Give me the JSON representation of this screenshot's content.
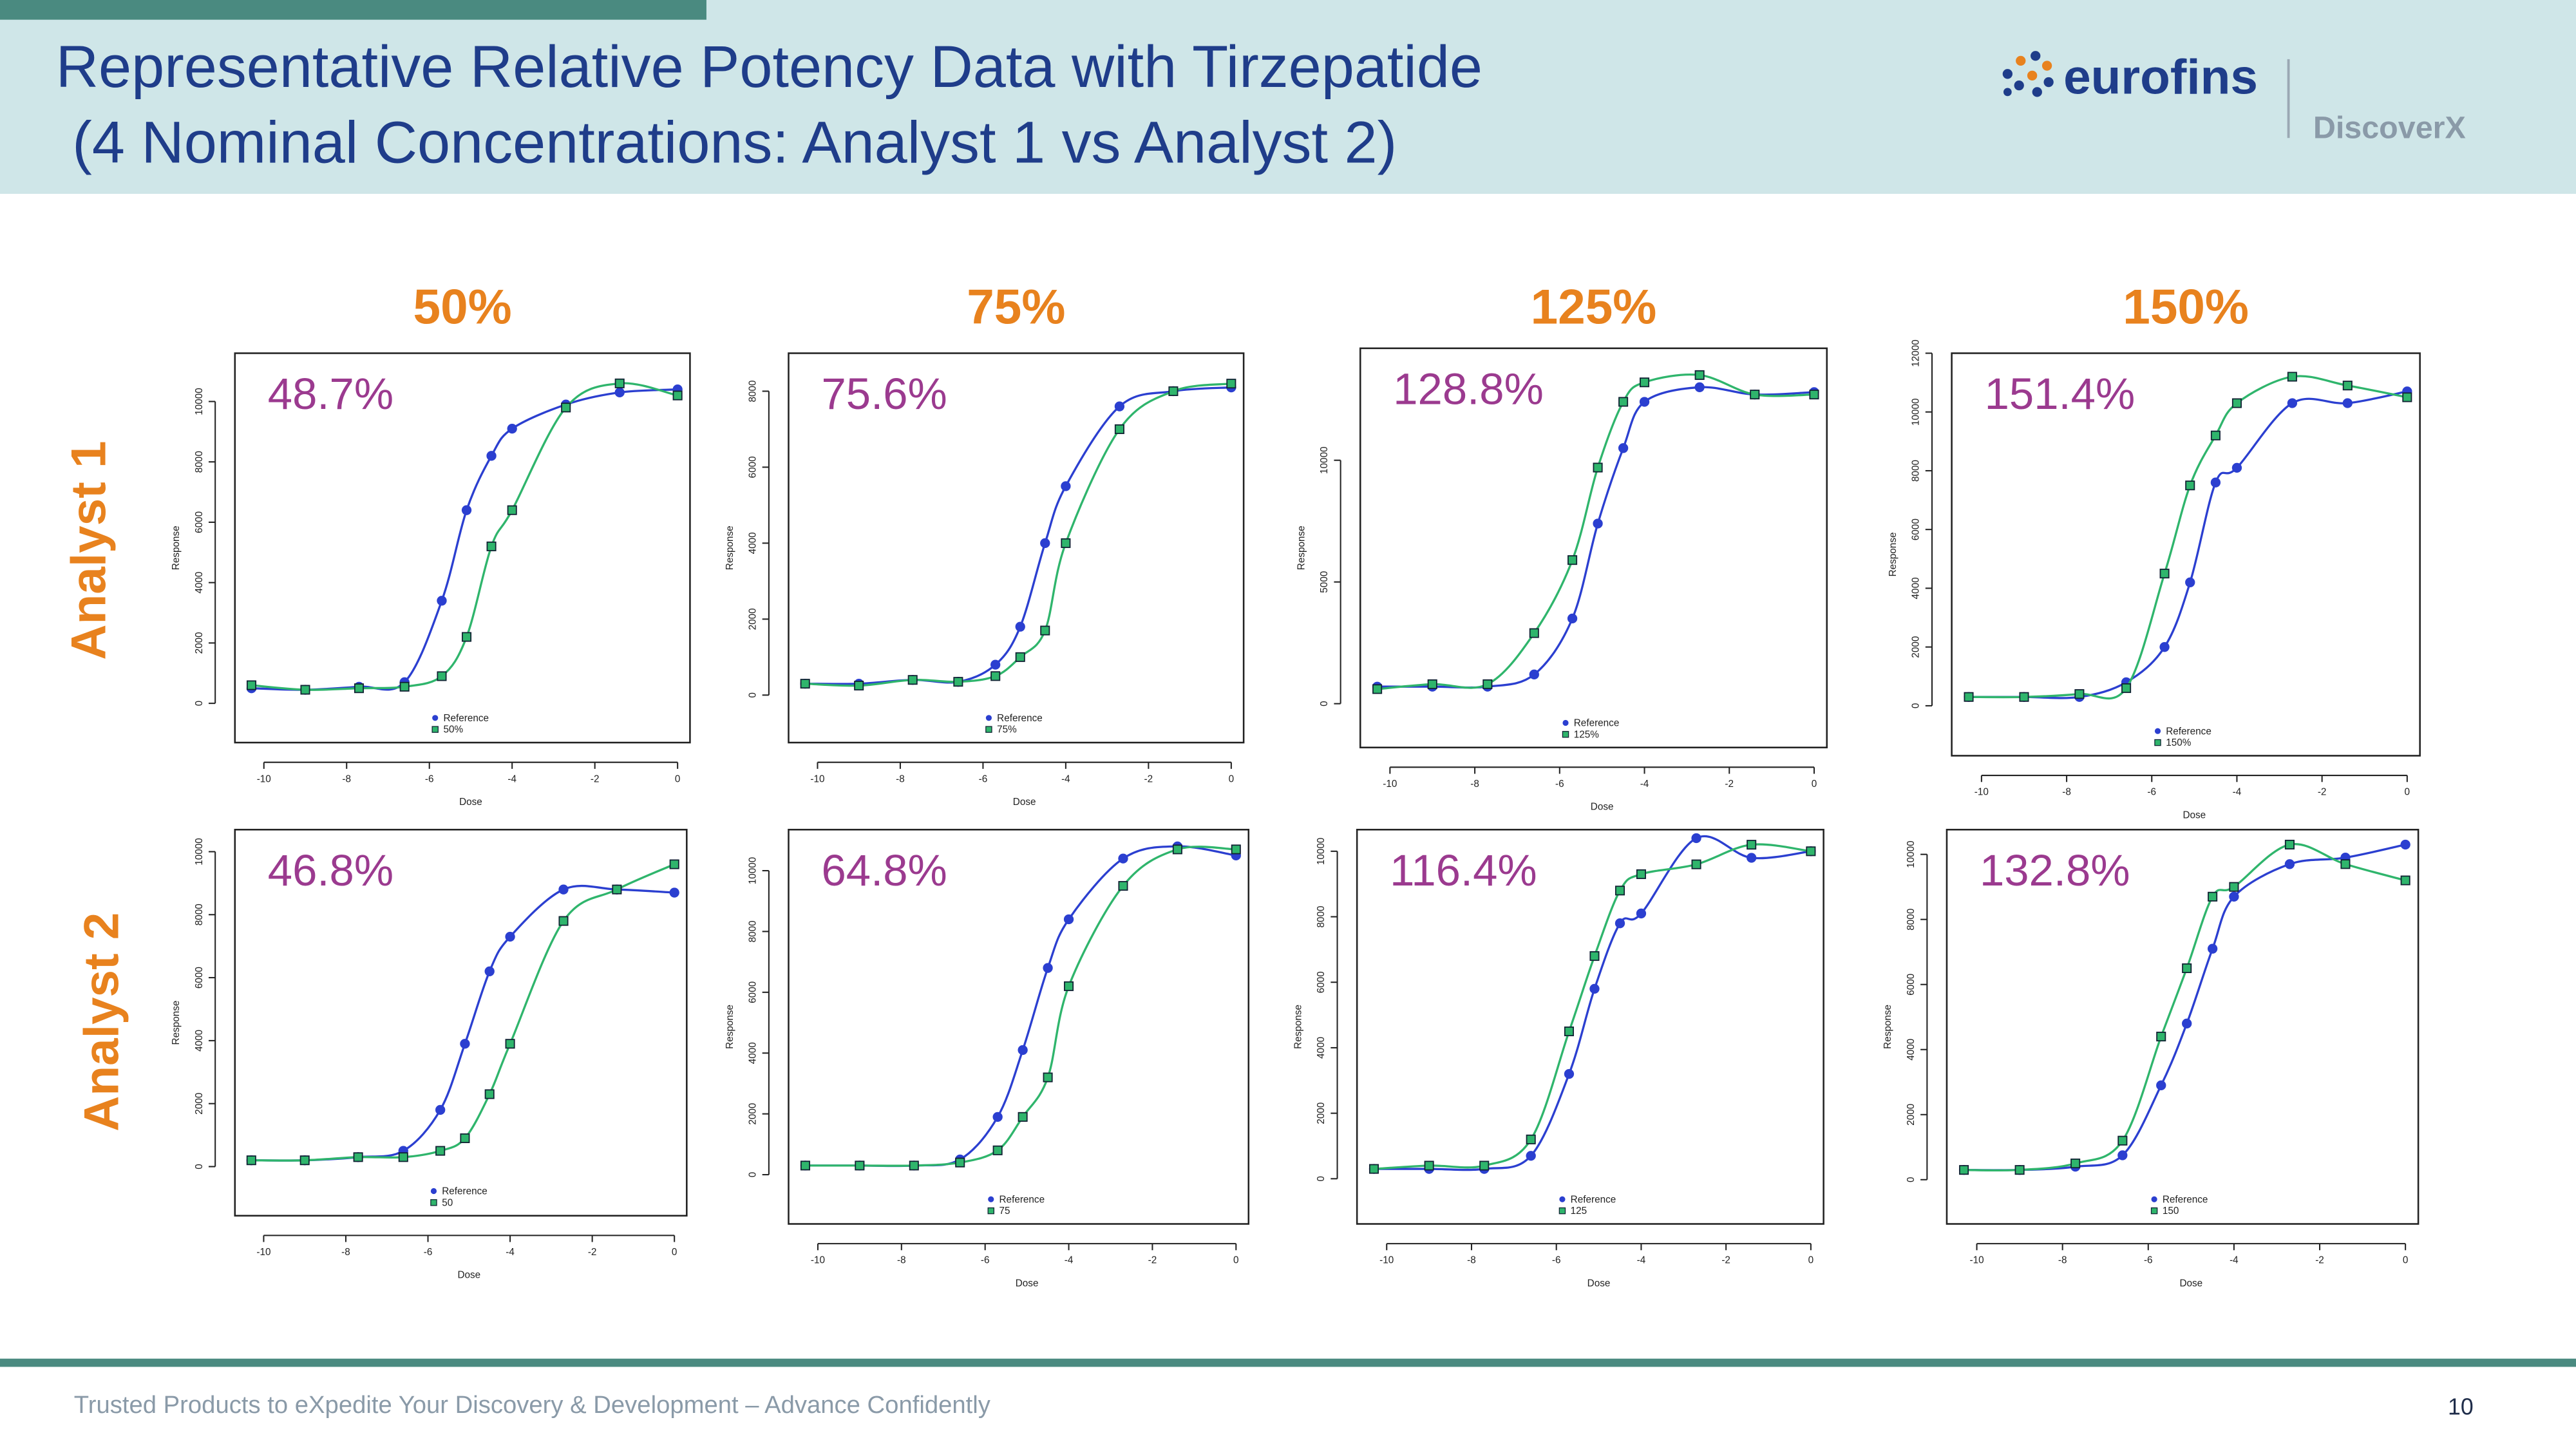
{
  "header": {
    "title_line1": "Representative Relative Potency Data with Tirzepatide",
    "title_line2": " (4 Nominal Concentrations: Analyst 1 vs Analyst 2)",
    "logo": "eurofins",
    "brand": "DiscoverX"
  },
  "row_labels": [
    "Analyst 1",
    "Analyst 2"
  ],
  "footer": {
    "tagline": "Trusted Products to eXpedite Your Discovery & Development – Advance Confidently",
    "page": "10"
  },
  "chart_data": [
    {
      "type": "scatter",
      "title": "50%",
      "annotation": "48.7%",
      "x_label": "Dose",
      "y_label": "Response",
      "x": [
        -10.3,
        -9.0,
        -7.7,
        -6.6,
        -5.7,
        -5.1,
        -4.5,
        -4.0,
        -2.7,
        -1.4,
        0
      ],
      "xlim": [
        -10.7,
        0.3
      ],
      "ylim": [
        -1300,
        11600
      ],
      "xticks": [
        -10,
        -8,
        -6,
        -4,
        -2,
        0
      ],
      "yticks": [
        0,
        2000,
        4000,
        6000,
        8000,
        10000
      ],
      "series": [
        {
          "name": "Reference",
          "color": "#2b3fd0",
          "values": [
            500,
            450,
            550,
            700,
            3400,
            6400,
            8200,
            9100,
            9900,
            10300,
            10400
          ]
        },
        {
          "name": "50%",
          "color": "#2fb56c",
          "values": [
            600,
            450,
            500,
            550,
            900,
            2200,
            5200,
            6400,
            9800,
            10600,
            10200
          ]
        }
      ]
    },
    {
      "type": "scatter",
      "title": "75%",
      "annotation": "75.6%",
      "x_label": "Dose",
      "y_label": "Response",
      "x": [
        -10.3,
        -9.0,
        -7.7,
        -6.6,
        -5.7,
        -5.1,
        -4.5,
        -4.0,
        -2.7,
        -1.4,
        0
      ],
      "xlim": [
        -10.7,
        0.3
      ],
      "ylim": [
        -1250,
        9000
      ],
      "xticks": [
        -10,
        -8,
        -6,
        -4,
        -2,
        0
      ],
      "yticks": [
        0,
        2000,
        4000,
        6000,
        8000
      ],
      "series": [
        {
          "name": "Reference",
          "color": "#2b3fd0",
          "values": [
            300,
            300,
            400,
            350,
            800,
            1800,
            4000,
            5500,
            7600,
            8000,
            8100
          ]
        },
        {
          "name": "75%",
          "color": "#2fb56c",
          "values": [
            300,
            250,
            400,
            350,
            500,
            1000,
            1700,
            4000,
            7000,
            8000,
            8200
          ]
        }
      ]
    },
    {
      "type": "scatter",
      "title": "125%",
      "annotation": "128.8%",
      "x_label": "Dose",
      "y_label": "Response",
      "x": [
        -10.3,
        -9.0,
        -7.7,
        -6.6,
        -5.7,
        -5.1,
        -4.5,
        -4.0,
        -2.7,
        -1.4,
        0
      ],
      "xlim": [
        -10.7,
        0.3
      ],
      "ylim": [
        -1800,
        14600
      ],
      "xticks": [
        -10,
        -8,
        -6,
        -4,
        -2,
        0
      ],
      "yticks": [
        0,
        5000,
        10000
      ],
      "series": [
        {
          "name": "Reference",
          "color": "#2b3fd0",
          "values": [
            700,
            700,
            700,
            1200,
            3500,
            7400,
            10500,
            12400,
            13000,
            12700,
            12800
          ]
        },
        {
          "name": "125%",
          "color": "#2fb56c",
          "values": [
            600,
            800,
            800,
            2900,
            5900,
            9700,
            12400,
            13200,
            13500,
            12700,
            12700
          ]
        }
      ]
    },
    {
      "type": "scatter",
      "title": "150%",
      "annotation": "151.4%",
      "x_label": "Dose",
      "y_label": "Response",
      "x": [
        -10.3,
        -9.0,
        -7.7,
        -6.6,
        -5.7,
        -5.1,
        -4.5,
        -4.0,
        -2.7,
        -1.4,
        0
      ],
      "xlim": [
        -10.7,
        0.3
      ],
      "ylim": [
        -1700,
        12000
      ],
      "xticks": [
        -10,
        -8,
        -6,
        -4,
        -2,
        0
      ],
      "yticks": [
        0,
        2000,
        4000,
        6000,
        8000,
        10000,
        12000
      ],
      "series": [
        {
          "name": "Reference",
          "color": "#2b3fd0",
          "values": [
            300,
            300,
            300,
            800,
            2000,
            4200,
            7600,
            8100,
            10300,
            10300,
            10700
          ]
        },
        {
          "name": "150%",
          "color": "#2fb56c",
          "values": [
            300,
            300,
            400,
            600,
            4500,
            7500,
            9200,
            10300,
            11200,
            10900,
            10500
          ]
        }
      ]
    },
    {
      "type": "scatter",
      "annotation": "46.8%",
      "x_label": "Dose",
      "y_label": "Response",
      "x": [
        -10.3,
        -9.0,
        -7.7,
        -6.6,
        -5.7,
        -5.1,
        -4.5,
        -4.0,
        -2.7,
        -1.4,
        0
      ],
      "xlim": [
        -10.7,
        0.3
      ],
      "ylim": [
        -1560,
        10700
      ],
      "xticks": [
        -10,
        -8,
        -6,
        -4,
        -2,
        0
      ],
      "yticks": [
        0,
        2000,
        4000,
        6000,
        8000,
        10000
      ],
      "series": [
        {
          "name": "Reference",
          "color": "#2b3fd0",
          "values": [
            200,
            200,
            300,
            500,
            1800,
            3900,
            6200,
            7300,
            8800,
            8800,
            8700
          ]
        },
        {
          "name": "50",
          "color": "#2fb56c",
          "values": [
            200,
            200,
            300,
            300,
            500,
            900,
            2300,
            3900,
            7800,
            8800,
            9600
          ]
        }
      ]
    },
    {
      "type": "scatter",
      "annotation": "64.8%",
      "x_label": "Dose",
      "y_label": "Response",
      "x": [
        -10.3,
        -9.0,
        -7.7,
        -6.6,
        -5.7,
        -5.1,
        -4.5,
        -4.0,
        -2.7,
        -1.4,
        0
      ],
      "xlim": [
        -10.7,
        0.3
      ],
      "ylim": [
        -1620,
        11350
      ],
      "xticks": [
        -10,
        -8,
        -6,
        -4,
        -2,
        0
      ],
      "yticks": [
        0,
        2000,
        4000,
        6000,
        8000,
        10000
      ],
      "series": [
        {
          "name": "Reference",
          "color": "#2b3fd0",
          "values": [
            300,
            300,
            300,
            500,
            1900,
            4100,
            6800,
            8400,
            10400,
            10800,
            10500
          ]
        },
        {
          "name": "75",
          "color": "#2fb56c",
          "values": [
            300,
            300,
            300,
            400,
            800,
            1900,
            3200,
            6200,
            9500,
            10700,
            10700
          ]
        }
      ]
    },
    {
      "type": "scatter",
      "annotation": "116.4%",
      "x_label": "Dose",
      "y_label": "Response",
      "x": [
        -10.3,
        -9.0,
        -7.7,
        -6.6,
        -5.7,
        -5.1,
        -4.5,
        -4.0,
        -2.7,
        -1.4,
        0
      ],
      "xlim": [
        -10.7,
        0.3
      ],
      "ylim": [
        -1380,
        10660
      ],
      "xticks": [
        -10,
        -8,
        -6,
        -4,
        -2,
        0
      ],
      "yticks": [
        0,
        2000,
        4000,
        6000,
        8000,
        10000
      ],
      "series": [
        {
          "name": "Reference",
          "color": "#2b3fd0",
          "values": [
            300,
            300,
            300,
            700,
            3200,
            5800,
            7800,
            8100,
            10400,
            9800,
            10000
          ]
        },
        {
          "name": "125",
          "color": "#2fb56c",
          "values": [
            300,
            400,
            400,
            1200,
            4500,
            6800,
            8800,
            9300,
            9600,
            10200,
            10000
          ]
        }
      ]
    },
    {
      "type": "scatter",
      "annotation": "132.8%",
      "x_label": "Dose",
      "y_label": "Response",
      "x": [
        -10.3,
        -9.0,
        -7.7,
        -6.6,
        -5.7,
        -5.1,
        -4.5,
        -4.0,
        -2.7,
        -1.4,
        0
      ],
      "xlim": [
        -10.7,
        0.3
      ],
      "ylim": [
        -1360,
        10760
      ],
      "xticks": [
        -10,
        -8,
        -6,
        -4,
        -2,
        0
      ],
      "yticks": [
        0,
        2000,
        4000,
        6000,
        8000,
        10000
      ],
      "series": [
        {
          "name": "Reference",
          "color": "#2b3fd0",
          "values": [
            300,
            300,
            400,
            750,
            2900,
            4800,
            7100,
            8700,
            9700,
            9900,
            10300
          ]
        },
        {
          "name": "150",
          "color": "#2fb56c",
          "values": [
            300,
            300,
            500,
            1200,
            4400,
            6500,
            8700,
            9000,
            10300,
            9700,
            9200
          ]
        }
      ]
    }
  ]
}
